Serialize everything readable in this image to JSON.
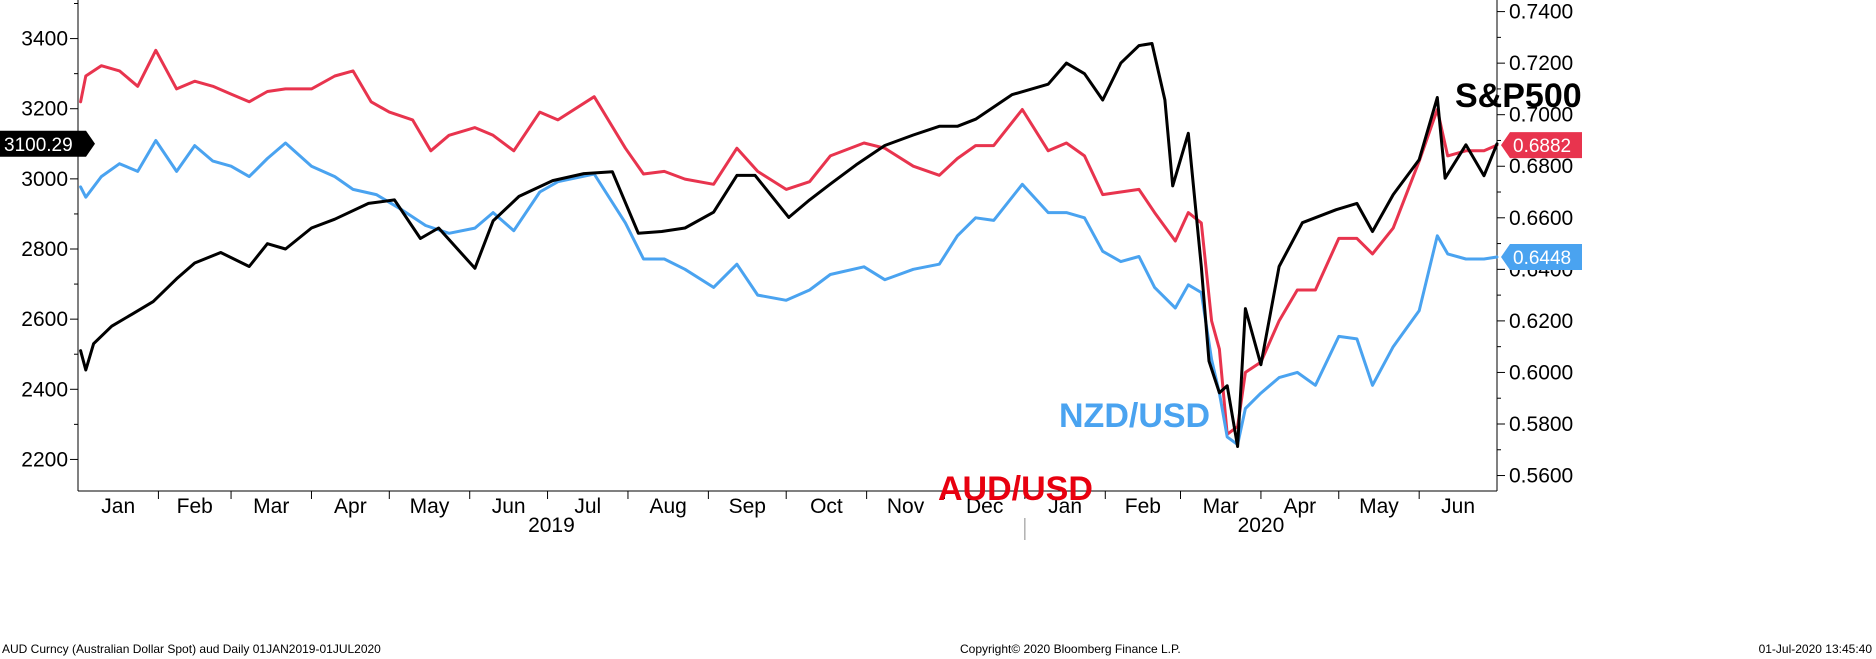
{
  "chart_data": {
    "type": "line",
    "title": "",
    "x_range": [
      "2019-01-01",
      "2020-07-01"
    ],
    "month_labels": [
      "Jan",
      "Feb",
      "Mar",
      "Apr",
      "May",
      "Jun",
      "Jul",
      "Aug",
      "Sep",
      "Oct",
      "Nov",
      "Dec",
      "Jan",
      "Feb",
      "Mar",
      "Apr",
      "May",
      "Jun"
    ],
    "year_labels": [
      "2019",
      "2020"
    ],
    "left_axis": {
      "ticks": [
        "2200",
        "2400",
        "2600",
        "2800",
        "3000",
        "3200",
        "3400"
      ],
      "range": [
        2110,
        3510
      ]
    },
    "right_axis": {
      "ticks": [
        "0.5600",
        "0.5800",
        "0.6000",
        "0.6200",
        "0.6400",
        "0.6600",
        "0.6800",
        "0.7000",
        "0.7200",
        "0.7400"
      ],
      "range": [
        0.554,
        0.7445
      ]
    },
    "series": [
      {
        "name": "S&P500",
        "axis": "left",
        "color": "#000000",
        "last_value": "3100.29",
        "points": [
          [
            "2019-01-02",
            2510
          ],
          [
            "2019-01-04",
            2455
          ],
          [
            "2019-01-07",
            2530
          ],
          [
            "2019-01-14",
            2580
          ],
          [
            "2019-01-22",
            2615
          ],
          [
            "2019-01-30",
            2650
          ],
          [
            "2019-02-08",
            2715
          ],
          [
            "2019-02-15",
            2760
          ],
          [
            "2019-02-25",
            2790
          ],
          [
            "2019-03-08",
            2750
          ],
          [
            "2019-03-15",
            2815
          ],
          [
            "2019-03-22",
            2800
          ],
          [
            "2019-04-01",
            2860
          ],
          [
            "2019-04-10",
            2885
          ],
          [
            "2019-04-23",
            2930
          ],
          [
            "2019-05-03",
            2940
          ],
          [
            "2019-05-13",
            2830
          ],
          [
            "2019-05-20",
            2860
          ],
          [
            "2019-06-03",
            2745
          ],
          [
            "2019-06-10",
            2880
          ],
          [
            "2019-06-20",
            2950
          ],
          [
            "2019-07-03",
            2995
          ],
          [
            "2019-07-15",
            3015
          ],
          [
            "2019-07-26",
            3020
          ],
          [
            "2019-08-05",
            2845
          ],
          [
            "2019-08-14",
            2850
          ],
          [
            "2019-08-23",
            2860
          ],
          [
            "2019-09-03",
            2905
          ],
          [
            "2019-09-12",
            3010
          ],
          [
            "2019-09-19",
            3010
          ],
          [
            "2019-10-02",
            2890
          ],
          [
            "2019-10-10",
            2940
          ],
          [
            "2019-10-18",
            2985
          ],
          [
            "2019-10-28",
            3040
          ],
          [
            "2019-11-08",
            3095
          ],
          [
            "2019-11-19",
            3125
          ],
          [
            "2019-11-29",
            3150
          ],
          [
            "2019-12-06",
            3150
          ],
          [
            "2019-12-13",
            3170
          ],
          [
            "2019-12-27",
            3240
          ],
          [
            "2020-01-10",
            3270
          ],
          [
            "2020-01-17",
            3330
          ],
          [
            "2020-01-24",
            3300
          ],
          [
            "2020-01-31",
            3225
          ],
          [
            "2020-02-07",
            3330
          ],
          [
            "2020-02-14",
            3380
          ],
          [
            "2020-02-19",
            3386
          ],
          [
            "2020-02-24",
            3225
          ],
          [
            "2020-02-27",
            2980
          ],
          [
            "2020-03-04",
            3130
          ],
          [
            "2020-03-09",
            2750
          ],
          [
            "2020-03-12",
            2480
          ],
          [
            "2020-03-16",
            2390
          ],
          [
            "2020-03-19",
            2410
          ],
          [
            "2020-03-23",
            2237
          ],
          [
            "2020-03-26",
            2630
          ],
          [
            "2020-04-01",
            2470
          ],
          [
            "2020-04-08",
            2750
          ],
          [
            "2020-04-17",
            2875
          ],
          [
            "2020-04-30",
            2912
          ],
          [
            "2020-05-08",
            2930
          ],
          [
            "2020-05-14",
            2850
          ],
          [
            "2020-05-22",
            2955
          ],
          [
            "2020-06-01",
            3055
          ],
          [
            "2020-06-08",
            3232
          ],
          [
            "2020-06-11",
            3002
          ],
          [
            "2020-06-19",
            3097
          ],
          [
            "2020-06-26",
            3009
          ],
          [
            "2020-07-01",
            3100
          ]
        ]
      },
      {
        "name": "AUD/USD",
        "axis": "right",
        "color": "#e8344e",
        "last_value": "0.6882",
        "points": [
          [
            "2019-01-02",
            0.705
          ],
          [
            "2019-01-04",
            0.715
          ],
          [
            "2019-01-10",
            0.719
          ],
          [
            "2019-01-17",
            0.717
          ],
          [
            "2019-01-24",
            0.711
          ],
          [
            "2019-01-31",
            0.725
          ],
          [
            "2019-02-08",
            0.71
          ],
          [
            "2019-02-15",
            0.713
          ],
          [
            "2019-02-22",
            0.711
          ],
          [
            "2019-03-01",
            0.708
          ],
          [
            "2019-03-08",
            0.705
          ],
          [
            "2019-03-15",
            0.709
          ],
          [
            "2019-03-22",
            0.71
          ],
          [
            "2019-04-01",
            0.71
          ],
          [
            "2019-04-10",
            0.715
          ],
          [
            "2019-04-17",
            0.717
          ],
          [
            "2019-04-24",
            0.705
          ],
          [
            "2019-05-01",
            0.701
          ],
          [
            "2019-05-10",
            0.698
          ],
          [
            "2019-05-17",
            0.686
          ],
          [
            "2019-05-24",
            0.692
          ],
          [
            "2019-06-03",
            0.695
          ],
          [
            "2019-06-10",
            0.692
          ],
          [
            "2019-06-18",
            0.686
          ],
          [
            "2019-06-28",
            0.701
          ],
          [
            "2019-07-05",
            0.698
          ],
          [
            "2019-07-19",
            0.707
          ],
          [
            "2019-07-31",
            0.687
          ],
          [
            "2019-08-07",
            0.677
          ],
          [
            "2019-08-15",
            0.678
          ],
          [
            "2019-08-23",
            0.675
          ],
          [
            "2019-09-03",
            0.673
          ],
          [
            "2019-09-12",
            0.687
          ],
          [
            "2019-09-20",
            0.678
          ],
          [
            "2019-10-01",
            0.671
          ],
          [
            "2019-10-10",
            0.674
          ],
          [
            "2019-10-18",
            0.684
          ],
          [
            "2019-10-31",
            0.689
          ],
          [
            "2019-11-08",
            0.687
          ],
          [
            "2019-11-19",
            0.68
          ],
          [
            "2019-11-29",
            0.6765
          ],
          [
            "2019-12-06",
            0.683
          ],
          [
            "2019-12-13",
            0.688
          ],
          [
            "2019-12-20",
            0.688
          ],
          [
            "2019-12-31",
            0.702
          ],
          [
            "2020-01-10",
            0.686
          ],
          [
            "2020-01-17",
            0.689
          ],
          [
            "2020-01-24",
            0.684
          ],
          [
            "2020-01-31",
            0.669
          ],
          [
            "2020-02-07",
            0.67
          ],
          [
            "2020-02-14",
            0.671
          ],
          [
            "2020-02-20",
            0.662
          ],
          [
            "2020-02-28",
            0.651
          ],
          [
            "2020-03-04",
            0.662
          ],
          [
            "2020-03-09",
            0.658
          ],
          [
            "2020-03-13",
            0.62
          ],
          [
            "2020-03-16",
            0.609
          ],
          [
            "2020-03-19",
            0.576
          ],
          [
            "2020-03-23",
            0.579
          ],
          [
            "2020-03-26",
            0.6
          ],
          [
            "2020-04-01",
            0.604
          ],
          [
            "2020-04-08",
            0.62
          ],
          [
            "2020-04-15",
            0.632
          ],
          [
            "2020-04-22",
            0.632
          ],
          [
            "2020-05-01",
            0.652
          ],
          [
            "2020-05-08",
            0.652
          ],
          [
            "2020-05-14",
            0.646
          ],
          [
            "2020-05-22",
            0.656
          ],
          [
            "2020-06-01",
            0.682
          ],
          [
            "2020-06-08",
            0.702
          ],
          [
            "2020-06-12",
            0.684
          ],
          [
            "2020-06-19",
            0.686
          ],
          [
            "2020-06-26",
            0.686
          ],
          [
            "2020-07-01",
            0.6882
          ]
        ]
      },
      {
        "name": "NZD/USD",
        "axis": "right",
        "color": "#4aa3f0",
        "last_value": "0.6448",
        "points": [
          [
            "2019-01-02",
            0.672
          ],
          [
            "2019-01-04",
            0.668
          ],
          [
            "2019-01-10",
            0.676
          ],
          [
            "2019-01-17",
            0.681
          ],
          [
            "2019-01-24",
            0.678
          ],
          [
            "2019-01-31",
            0.69
          ],
          [
            "2019-02-08",
            0.678
          ],
          [
            "2019-02-15",
            0.688
          ],
          [
            "2019-02-22",
            0.682
          ],
          [
            "2019-03-01",
            0.68
          ],
          [
            "2019-03-08",
            0.676
          ],
          [
            "2019-03-15",
            0.683
          ],
          [
            "2019-03-22",
            0.689
          ],
          [
            "2019-04-01",
            0.68
          ],
          [
            "2019-04-10",
            0.676
          ],
          [
            "2019-04-17",
            0.671
          ],
          [
            "2019-04-26",
            0.669
          ],
          [
            "2019-05-06",
            0.663
          ],
          [
            "2019-05-15",
            0.657
          ],
          [
            "2019-05-24",
            0.654
          ],
          [
            "2019-06-03",
            0.656
          ],
          [
            "2019-06-10",
            0.662
          ],
          [
            "2019-06-18",
            0.655
          ],
          [
            "2019-06-28",
            0.67
          ],
          [
            "2019-07-05",
            0.674
          ],
          [
            "2019-07-19",
            0.677
          ],
          [
            "2019-07-31",
            0.658
          ],
          [
            "2019-08-07",
            0.644
          ],
          [
            "2019-08-15",
            0.644
          ],
          [
            "2019-08-23",
            0.64
          ],
          [
            "2019-09-03",
            0.633
          ],
          [
            "2019-09-12",
            0.642
          ],
          [
            "2019-09-20",
            0.63
          ],
          [
            "2019-10-01",
            0.628
          ],
          [
            "2019-10-10",
            0.632
          ],
          [
            "2019-10-18",
            0.638
          ],
          [
            "2019-10-31",
            0.641
          ],
          [
            "2019-11-08",
            0.636
          ],
          [
            "2019-11-19",
            0.64
          ],
          [
            "2019-11-29",
            0.642
          ],
          [
            "2019-12-06",
            0.653
          ],
          [
            "2019-12-13",
            0.66
          ],
          [
            "2019-12-20",
            0.659
          ],
          [
            "2019-12-31",
            0.673
          ],
          [
            "2020-01-10",
            0.662
          ],
          [
            "2020-01-17",
            0.662
          ],
          [
            "2020-01-24",
            0.66
          ],
          [
            "2020-01-31",
            0.647
          ],
          [
            "2020-02-07",
            0.643
          ],
          [
            "2020-02-14",
            0.645
          ],
          [
            "2020-02-20",
            0.633
          ],
          [
            "2020-02-28",
            0.625
          ],
          [
            "2020-03-04",
            0.634
          ],
          [
            "2020-03-09",
            0.631
          ],
          [
            "2020-03-13",
            0.605
          ],
          [
            "2020-03-16",
            0.592
          ],
          [
            "2020-03-19",
            0.575
          ],
          [
            "2020-03-23",
            0.572
          ],
          [
            "2020-03-26",
            0.586
          ],
          [
            "2020-04-01",
            0.592
          ],
          [
            "2020-04-08",
            0.598
          ],
          [
            "2020-04-15",
            0.6
          ],
          [
            "2020-04-22",
            0.595
          ],
          [
            "2020-05-01",
            0.614
          ],
          [
            "2020-05-08",
            0.613
          ],
          [
            "2020-05-14",
            0.595
          ],
          [
            "2020-05-22",
            0.61
          ],
          [
            "2020-06-01",
            0.624
          ],
          [
            "2020-06-08",
            0.653
          ],
          [
            "2020-06-12",
            0.646
          ],
          [
            "2020-06-19",
            0.644
          ],
          [
            "2020-06-26",
            0.644
          ],
          [
            "2020-07-01",
            0.6448
          ]
        ]
      }
    ],
    "annotations": [
      "S&P500",
      "NZD/USD",
      "AUD/USD"
    ],
    "grid": false,
    "legend": "none"
  },
  "footer": {
    "left": "AUD Curncy (Australian Dollar Spot) aud  Daily 01JAN2019-01JUL2020",
    "center": "Copyright© 2020 Bloomberg Finance L.P.",
    "right": "01-Jul-2020 13:45:40"
  }
}
